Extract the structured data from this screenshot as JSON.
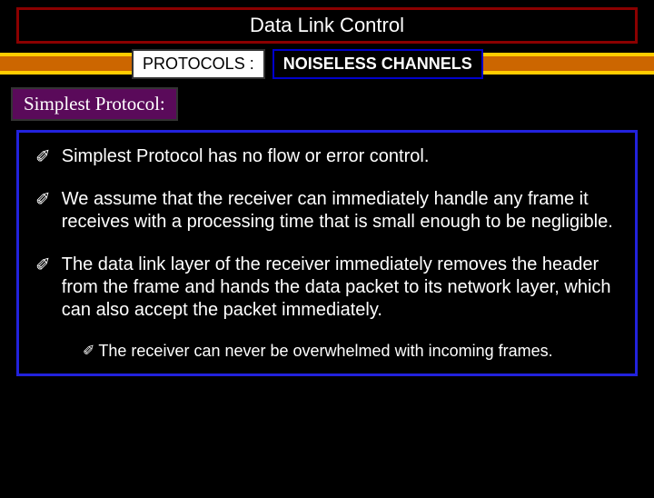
{
  "titleBar": {
    "text": "Data Link Control",
    "bg": "#000000",
    "border": "#8b0000",
    "textColor": "#ffffff",
    "fontSize": 22
  },
  "protocolsRow": {
    "label": "PROTOCOLS :",
    "value": "NOISELESS CHANNELS",
    "stripeFill": "#cc6600",
    "stripeBorder": "#ffcc00",
    "labelBg": "#ffffff",
    "valueBg": "#000000",
    "valueBorder": "#0000cc",
    "fontSize": 18
  },
  "subtitle": {
    "text": "Simplest Protocol:",
    "bg": "#5a0a5a",
    "textColor": "#ffffff",
    "fontSize": 21
  },
  "contentBox": {
    "border": "#2222dd",
    "bg": "#000000"
  },
  "bullets": [
    {
      "text": "Simplest Protocol has no flow or error control."
    },
    {
      "text": "We assume that the receiver can immediately handle any frame it receives with a processing time that is small enough to be negligible."
    },
    {
      "text": "The data link layer of the receiver immediately removes the header from the frame and hands the data packet to its network layer, which can also accept the packet immediately."
    }
  ],
  "subBullet": {
    "text": "The receiver can never be overwhelmed with incoming frames."
  },
  "bulletGlyph": "✐",
  "textColor": "#ffffff",
  "bulletFontSize": 20,
  "subBulletFontSize": 18
}
